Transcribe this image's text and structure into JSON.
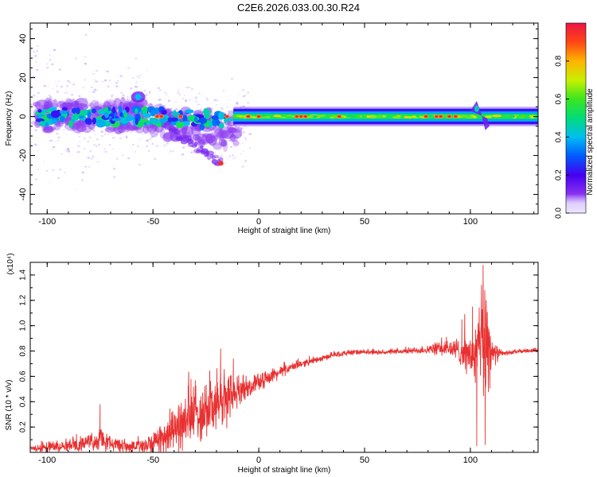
{
  "title": "C2E6.2026.033.00.30.R24",
  "chart_data": [
    {
      "type": "heatmap",
      "name": "spectrogram",
      "title": "C2E6.2026.033.00.30.R24",
      "xlabel": "Height of straight line (km)",
      "ylabel": "Frequency (Hz)",
      "xlim": [
        -108,
        132
      ],
      "ylim": [
        -50,
        48
      ],
      "x_ticks": [
        -100,
        -50,
        0,
        50,
        100
      ],
      "y_ticks": [
        -40,
        -20,
        0,
        20,
        40
      ],
      "colorbar": {
        "label": "Normalized spectral amplitude",
        "range": [
          0,
          1
        ],
        "ticks": [
          "0.0",
          "0.2",
          "0.4",
          "0.6",
          "0.8"
        ]
      },
      "features": {
        "noisy_region_x": [
          -108,
          -12
        ],
        "stable_band_x": [
          -12,
          132
        ],
        "stable_band_center_hz": 0,
        "stable_band_halfwidth_hz": 4,
        "peak_blobs_x": [
          -48,
          -46,
          -37,
          -15,
          -5,
          0,
          18,
          20,
          22,
          38,
          79,
          84,
          86,
          90,
          93
        ],
        "upper_blob": {
          "x": -57,
          "hz": 10
        },
        "lower_arm_end": {
          "x": -18,
          "hz": -24
        },
        "disturbance_x": 104
      }
    },
    {
      "type": "line",
      "name": "snr",
      "xlabel": "Height of straight line (km)",
      "ylabel": "SNR (10 * v/v)",
      "exponent_label": "(x10⁴)",
      "xlim": [
        -108,
        132
      ],
      "ylim": [
        0,
        1.5
      ],
      "x_ticks": [
        -100,
        -50,
        0,
        50,
        100
      ],
      "y_ticks": [
        0.2,
        0.4,
        0.6,
        0.8,
        1.0,
        1.2,
        1.4
      ],
      "series": [
        {
          "name": "SNR",
          "color": "#e83030",
          "envelope_x": [
            -108,
            -100,
            -90,
            -80,
            -75,
            -70,
            -60,
            -50,
            -45,
            -40,
            -35,
            -30,
            -25,
            -20,
            -15,
            -12,
            -8,
            -5,
            0,
            5,
            10,
            15,
            20,
            25,
            30,
            35,
            40,
            45,
            50,
            60,
            70,
            80,
            85,
            90,
            95,
            100,
            102,
            105,
            108,
            110,
            115,
            120,
            125,
            132
          ],
          "envelope_y": [
            0.03,
            0.04,
            0.06,
            0.08,
            0.1,
            0.07,
            0.04,
            0.07,
            0.13,
            0.18,
            0.24,
            0.3,
            0.35,
            0.38,
            0.42,
            0.46,
            0.5,
            0.52,
            0.55,
            0.6,
            0.63,
            0.67,
            0.7,
            0.72,
            0.74,
            0.77,
            0.78,
            0.79,
            0.79,
            0.79,
            0.8,
            0.81,
            0.82,
            0.82,
            0.8,
            0.76,
            0.74,
            0.85,
            0.92,
            0.78,
            0.78,
            0.79,
            0.8,
            0.81
          ],
          "noise_y": [
            0.02,
            0.04,
            0.05,
            0.05,
            0.08,
            0.05,
            0.05,
            0.09,
            0.12,
            0.16,
            0.2,
            0.22,
            0.22,
            0.22,
            0.2,
            0.13,
            0.09,
            0.07,
            0.06,
            0.05,
            0.04,
            0.03,
            0.03,
            0.02,
            0.02,
            0.02,
            0.02,
            0.02,
            0.015,
            0.015,
            0.02,
            0.03,
            0.05,
            0.07,
            0.09,
            0.15,
            0.22,
            0.35,
            0.5,
            0.1,
            0.02,
            0.015,
            0.015,
            0.015
          ],
          "spikes": [
            {
              "x": -75,
              "y": 0.38
            },
            {
              "x": -18,
              "y": 0.82
            },
            {
              "x": -12,
              "y": 0.74
            },
            {
              "x": 96,
              "y": 1.05
            },
            {
              "x": 101,
              "y": 1.15
            },
            {
              "x": 103,
              "y": 0.05
            },
            {
              "x": 106,
              "y": 1.48
            },
            {
              "x": 107,
              "y": 0.06
            }
          ]
        }
      ]
    }
  ]
}
